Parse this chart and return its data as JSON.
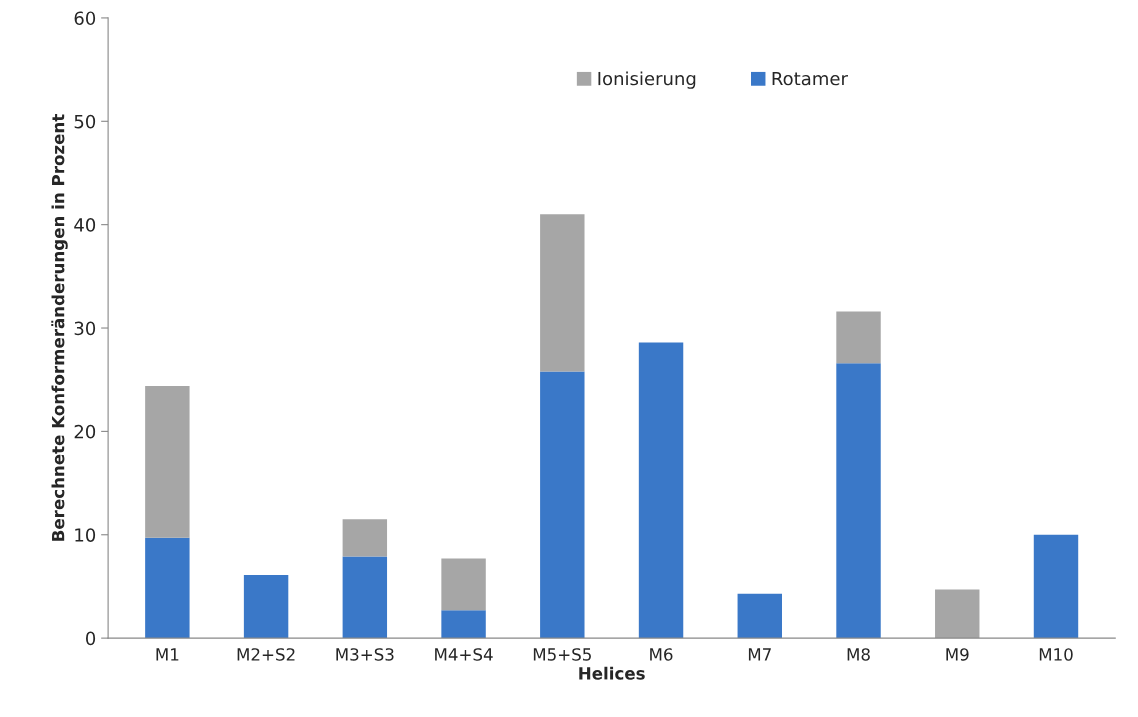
{
  "chart_data": {
    "type": "bar",
    "stacked": true,
    "xlabel": "Helices",
    "ylabel": "Berechnete Konformeränderungen in Prozent",
    "categories": [
      "M1",
      "M2+S2",
      "M3+S3",
      "M4+S4",
      "M5+S5",
      "M6",
      "M7",
      "M8",
      "M9",
      "M10"
    ],
    "series": [
      {
        "name": "Rotamer",
        "color": "#3a78c8",
        "values": [
          9.7,
          6.1,
          7.9,
          2.7,
          25.8,
          28.6,
          4.3,
          26.6,
          0,
          10.0
        ]
      },
      {
        "name": "Ionisierung",
        "color": "#a6a6a6",
        "values": [
          14.7,
          0,
          3.6,
          5.0,
          15.2,
          0,
          0,
          5.0,
          4.7,
          0
        ]
      }
    ],
    "ylim": [
      0,
      60
    ],
    "yticks": [
      0,
      10,
      20,
      30,
      40,
      50,
      60
    ],
    "grid": false,
    "legend": "top"
  }
}
